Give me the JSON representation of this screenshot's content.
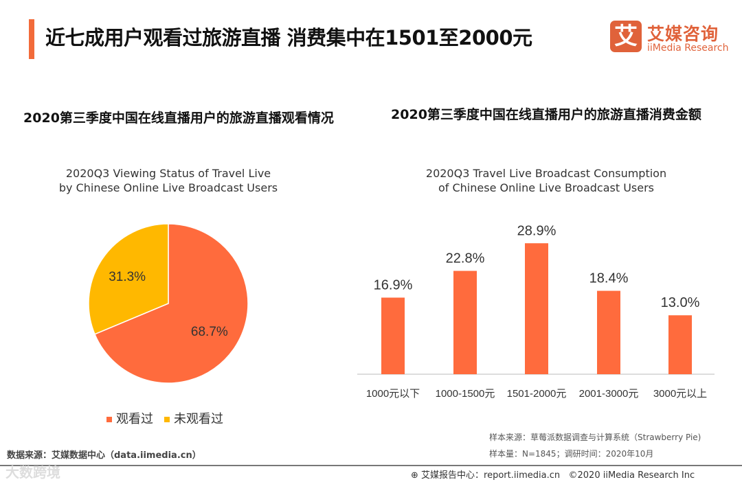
{
  "header": {
    "title": "近七成用户观看过旅游直播 消费集中在1501至2000元",
    "logo_mark": "艾",
    "logo_cn": "艾媒咨询",
    "logo_en": "iiMedia Research"
  },
  "colors": {
    "orange": "#FF6B3D",
    "yellow": "#FFB800",
    "accent": "#F26B3A"
  },
  "chart_data": [
    {
      "type": "pie",
      "title": "2020第三季度中国在线直播用户的旅游直播观看情况",
      "subtitle_line1": "2020Q3 Viewing Status of Travel Live",
      "subtitle_line2": "by Chinese Online Live Broadcast Users",
      "slices": [
        {
          "name": "观看过",
          "value": 68.7,
          "label": "68.7%"
        },
        {
          "name": "未观看过",
          "value": 31.3,
          "label": "31.3%"
        }
      ],
      "legend": "bottom"
    },
    {
      "type": "bar",
      "title": "2020第三季度中国在线直播用户的旅游直播消费金额",
      "subtitle_line1": "2020Q3 Travel Live Broadcast Consumption",
      "subtitle_line2": "of Chinese Online Live Broadcast Users",
      "categories": [
        "1000元以下",
        "1000-1500元",
        "1501-2000元",
        "2001-3000元",
        "3000元以上"
      ],
      "values": [
        16.9,
        22.8,
        28.9,
        18.4,
        13.0
      ],
      "labels": [
        "16.9%",
        "22.8%",
        "28.9%",
        "18.4%",
        "13.0%"
      ],
      "ylim": [
        0,
        30
      ]
    }
  ],
  "footer": {
    "source_left": "数据来源：艾媒数据中心（data.iimedia.cn）",
    "sample_source": "样本来源：草莓派数据调查与计算系统（Strawberry Pie)",
    "sample_size": "样本量：N=1845；调研时间：2020年10月",
    "report": "艾媒报告中心：report.iimedia.cn",
    "copyright": "©2020  iiMedia Research  Inc",
    "watermark": "大数跨境"
  }
}
